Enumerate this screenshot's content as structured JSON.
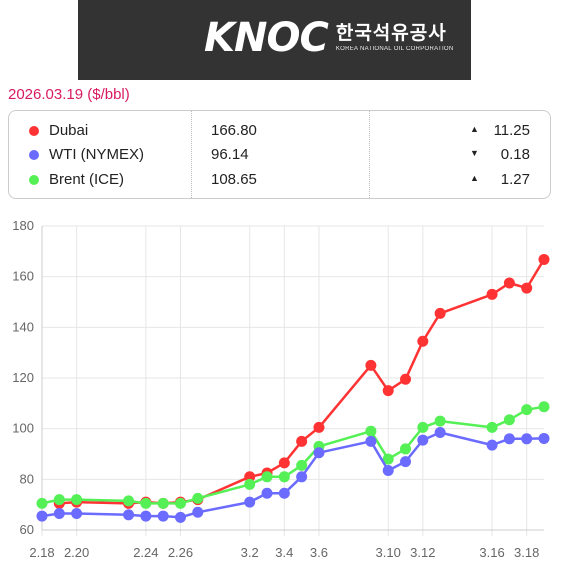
{
  "brand": {
    "mark": "KNOC",
    "name_ko": "한국석유공사",
    "name_en": "KOREA NATIONAL OIL CORPORATION"
  },
  "header": {
    "date": "2026.03.19 ($/bbl)"
  },
  "summary": [
    {
      "name": "Dubai",
      "price": "166.80",
      "direction": "up",
      "arrow": "▲",
      "change": "11.25",
      "color": "#ff3333"
    },
    {
      "name": "WTI (NYMEX)",
      "price": "96.14",
      "direction": "down",
      "arrow": "▼",
      "change": "0.18",
      "color": "#6b6bff"
    },
    {
      "name": "Brent (ICE)",
      "price": "108.65",
      "direction": "up",
      "arrow": "▲",
      "change": "1.27",
      "color": "#55f055"
    }
  ],
  "chart_data": {
    "type": "line",
    "title": "",
    "xlabel": "",
    "ylabel": "",
    "ylim": [
      60,
      180
    ],
    "y_ticks": [
      60,
      80,
      100,
      120,
      140,
      160,
      180
    ],
    "x": [
      "2.18",
      "2.19",
      "2.20",
      "2.21",
      "2.22",
      "2.23",
      "2.24",
      "2.25",
      "2.26",
      "2.27",
      "2.28",
      "3.1",
      "3.2",
      "3.3",
      "3.4",
      "3.5",
      "3.6",
      "3.7",
      "3.8",
      "3.9",
      "3.10",
      "3.11",
      "3.12",
      "3.13",
      "3.14",
      "3.15",
      "3.16",
      "3.17",
      "3.18",
      "3.19"
    ],
    "x_tick_labels": [
      "2.18",
      "2.20",
      "2.24",
      "2.26",
      "3.2",
      "3.4",
      "3.6",
      "3.10",
      "3.12",
      "3.16",
      "3.18"
    ],
    "x_tick_dates": [
      "2.18",
      "2.20",
      "2.24",
      "2.26",
      "3.2",
      "3.4",
      "3.6",
      "3.10",
      "3.12",
      "3.16",
      "3.18"
    ],
    "grid": true,
    "legend": "none",
    "series": [
      {
        "name": "Dubai",
        "color": "#ff3333",
        "points": [
          [
            "2.19",
            70.5
          ],
          [
            "2.20",
            71
          ],
          [
            "2.23",
            70.5
          ],
          [
            "2.24",
            71
          ],
          [
            "2.25",
            70.5
          ],
          [
            "2.26",
            71
          ],
          [
            "2.27",
            72
          ],
          [
            "3.2",
            81
          ],
          [
            "3.3",
            82.5
          ],
          [
            "3.4",
            86.5
          ],
          [
            "3.5",
            95
          ],
          [
            "3.6",
            100.5
          ],
          [
            "3.9",
            125
          ],
          [
            "3.10",
            115
          ],
          [
            "3.11",
            119.5
          ],
          [
            "3.12",
            134.5
          ],
          [
            "3.13",
            145.5
          ],
          [
            "3.16",
            153
          ],
          [
            "3.17",
            157.5
          ],
          [
            "3.18",
            155.5
          ],
          [
            "3.19",
            166.8
          ]
        ]
      },
      {
        "name": "Brent (ICE)",
        "color": "#55f055",
        "points": [
          [
            "2.18",
            70.5
          ],
          [
            "2.19",
            72
          ],
          [
            "2.20",
            72
          ],
          [
            "2.23",
            71.5
          ],
          [
            "2.24",
            70.5
          ],
          [
            "2.25",
            70.5
          ],
          [
            "2.26",
            70.5
          ],
          [
            "2.27",
            72.5
          ],
          [
            "3.2",
            78
          ],
          [
            "3.3",
            81
          ],
          [
            "3.4",
            81
          ],
          [
            "3.5",
            85.5
          ],
          [
            "3.6",
            93
          ],
          [
            "3.9",
            99
          ],
          [
            "3.10",
            88
          ],
          [
            "3.11",
            92
          ],
          [
            "3.12",
            100.5
          ],
          [
            "3.13",
            103
          ],
          [
            "3.16",
            100.5
          ],
          [
            "3.17",
            103.5
          ],
          [
            "3.18",
            107.5
          ],
          [
            "3.19",
            108.65
          ]
        ]
      },
      {
        "name": "WTI (NYMEX)",
        "color": "#6b6bff",
        "points": [
          [
            "2.18",
            65.5
          ],
          [
            "2.19",
            66.5
          ],
          [
            "2.20",
            66.5
          ],
          [
            "2.23",
            66
          ],
          [
            "2.24",
            65.5
          ],
          [
            "2.25",
            65.5
          ],
          [
            "2.26",
            65
          ],
          [
            "2.27",
            67
          ],
          [
            "3.2",
            71
          ],
          [
            "3.3",
            74.5
          ],
          [
            "3.4",
            74.5
          ],
          [
            "3.5",
            81
          ],
          [
            "3.6",
            90.5
          ],
          [
            "3.9",
            95
          ],
          [
            "3.10",
            83.5
          ],
          [
            "3.11",
            87
          ],
          [
            "3.12",
            95.5
          ],
          [
            "3.13",
            98.5
          ],
          [
            "3.16",
            93.5
          ],
          [
            "3.17",
            96
          ],
          [
            "3.18",
            96
          ],
          [
            "3.19",
            96.14
          ]
        ]
      }
    ]
  }
}
